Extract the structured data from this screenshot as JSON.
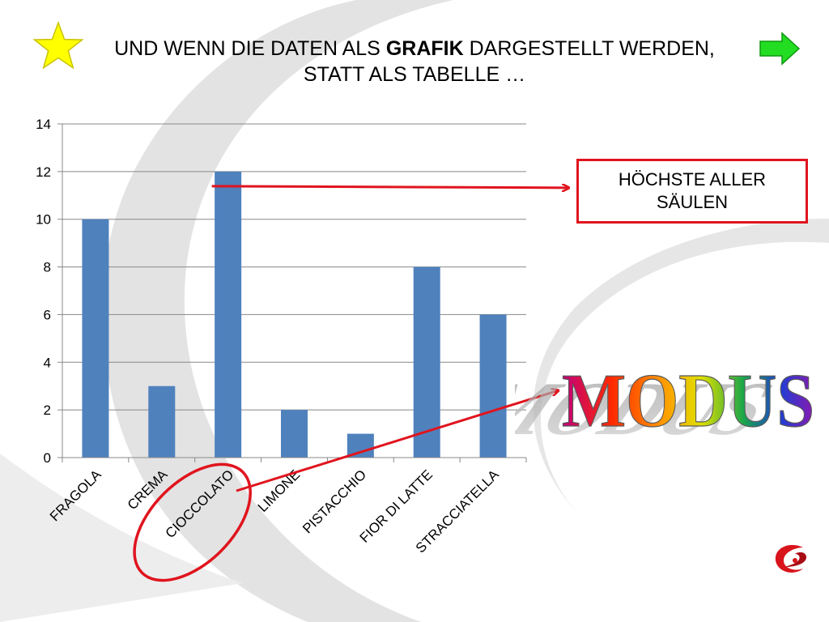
{
  "slide": {
    "title_pre": "UND WENN DIE DATEN ALS ",
    "title_bold": "GRAFIK",
    "title_post": " DARGESTELLT WERDEN, STATT ALS TABELLE …",
    "callout_text": "HÖCHSTE ALLER SÄULEN",
    "word_art": "MODUS",
    "icons": [
      "star-icon",
      "next-arrow-icon",
      "logo-icon"
    ]
  },
  "chart_data": {
    "type": "bar",
    "categories": [
      "FRAGOLA",
      "CREMA",
      "CIOCCOLATO",
      "LIMONE",
      "PISTACCHIO",
      "FIOR DI LATTE",
      "STRACCIATELLA"
    ],
    "series": [
      {
        "values": [
          10,
          3,
          12,
          2,
          1,
          8,
          6
        ]
      }
    ],
    "ylim": [
      0,
      14
    ],
    "yticks": [
      0,
      2,
      4,
      6,
      8,
      10,
      12,
      14
    ],
    "grid": true,
    "legend": "none",
    "highlight_category": "CIOCCOLATO",
    "colors": {
      "bar": "#4f81bd",
      "accent": "#e0141e",
      "grid": "#888888"
    }
  }
}
